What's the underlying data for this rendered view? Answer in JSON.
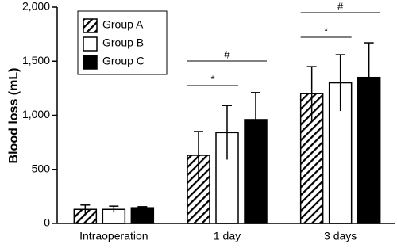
{
  "chart_data": {
    "type": "bar",
    "y_label": "Blood loss (mL)",
    "categories": [
      "Intraoperation",
      "1 day",
      "3 days"
    ],
    "series": [
      {
        "name": "Group A",
        "color": "#000000",
        "pattern": "diagonal-hatch",
        "values": [
          130,
          630,
          1200
        ],
        "errors": [
          40,
          220,
          250
        ]
      },
      {
        "name": "Group B",
        "color": "#ffffff",
        "values": [
          130,
          840,
          1300
        ],
        "errors": [
          30,
          250,
          260
        ]
      },
      {
        "name": "Group C",
        "color": "#000000",
        "values": [
          145,
          960,
          1350
        ],
        "errors": [
          10,
          250,
          320
        ]
      }
    ],
    "ylim": [
      0,
      2000
    ],
    "yticks": [
      0,
      500,
      {
        "value": 1000,
        "label": "1,000"
      },
      {
        "value": 1500,
        "label": "1,500"
      },
      {
        "value": 2000,
        "label": "2,000"
      }
    ],
    "annotations": [
      "*",
      "#",
      "*",
      "#"
    ],
    "legend": "upper-left",
    "grid": false
  }
}
